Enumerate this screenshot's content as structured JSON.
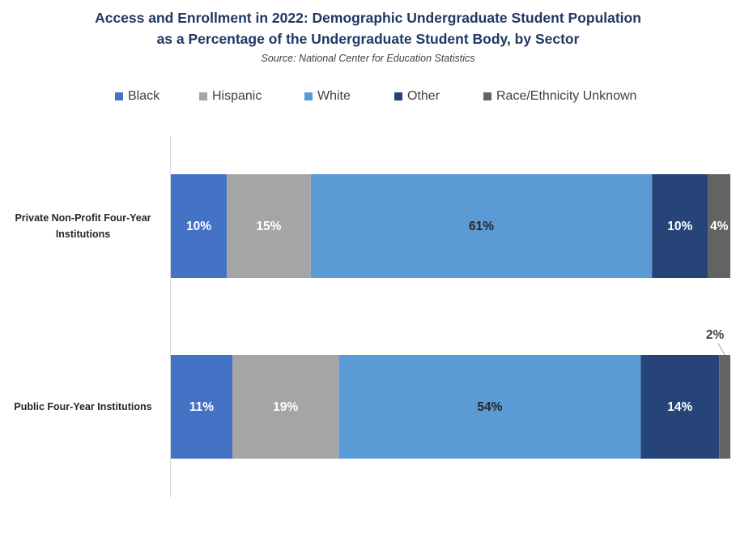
{
  "chart_data": {
    "type": "bar",
    "orientation": "horizontal",
    "stacked": true,
    "title_line1": "Access and Enrollment in 2022: Demographic Undergraduate Student Population",
    "title_line2": "as a Percentage of the Undergraduate Student Body, by Sector",
    "subtitle": "Source: National Center for Education Statistics",
    "categories": [
      {
        "line1": "Private Non-Profit Four-Year",
        "line2": "Institutions"
      },
      {
        "line1": "Public Four-Year Institutions",
        "line2": ""
      }
    ],
    "series": [
      {
        "name": "Black",
        "color": "#4472c4",
        "label_color": "#ffffff",
        "values": [
          10,
          11
        ],
        "labels": [
          "10%",
          "11%"
        ]
      },
      {
        "name": "Hispanic",
        "color": "#a5a5a5",
        "label_color": "#ffffff",
        "values": [
          15,
          19
        ],
        "labels": [
          "15%",
          "19%"
        ]
      },
      {
        "name": "White",
        "color": "#5b9bd5",
        "label_color": "#262626",
        "values": [
          61,
          54
        ],
        "labels": [
          "61%",
          "54%"
        ]
      },
      {
        "name": "Other",
        "color": "#264478",
        "label_color": "#ffffff",
        "values": [
          10,
          14
        ],
        "labels": [
          "10%",
          "14%"
        ]
      },
      {
        "name": "Race/Ethnicity Unknown",
        "color": "#636363",
        "label_color": "#ffffff",
        "values": [
          4,
          2
        ],
        "labels": [
          "4%",
          "2%"
        ]
      }
    ],
    "legend_position": "top",
    "grid": false
  }
}
